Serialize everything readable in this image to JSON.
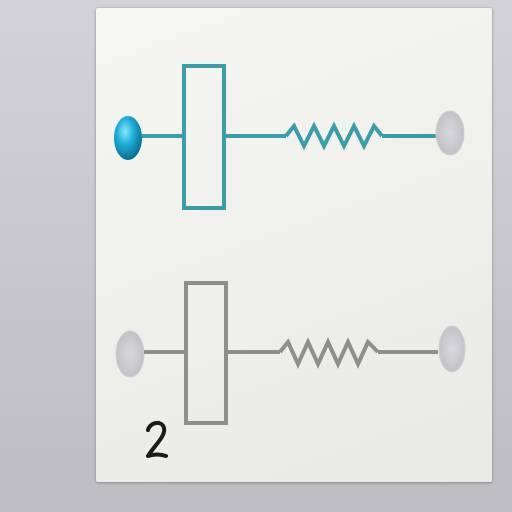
{
  "card": {
    "handwritten_label": "2"
  },
  "circuits": [
    {
      "name": "top-circuit",
      "color": "#3a9eaa",
      "terminal_left": "filled-blue-dot",
      "terminal_right": "hole"
    },
    {
      "name": "bottom-circuit",
      "color": "#8e8e8e",
      "terminal_left": "hole",
      "terminal_right": "hole"
    }
  ],
  "colors": {
    "background": "#c9c8cc",
    "card": "#f2f2ef",
    "teal_trace": "#3a9eaa",
    "gray_trace": "#8e8e8e",
    "blue_dot": "#1ea9d0",
    "ink": "#1a1a1a"
  }
}
